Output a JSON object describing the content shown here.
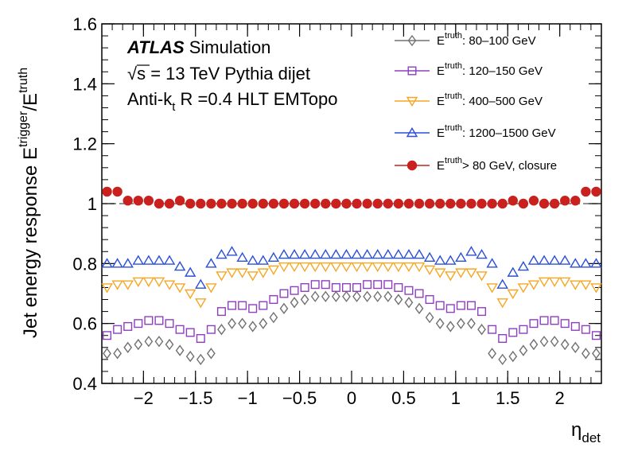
{
  "chart_data": {
    "type": "scatter",
    "title": "",
    "xlabel": "η",
    "xlabel_sub": "det",
    "ylabel": "Jet energy response  E",
    "ylabel_sup1": "trigger",
    "ylabel_mid": "/E",
    "ylabel_sup2": "truth",
    "xlim": [
      -2.4,
      2.4
    ],
    "ylim": [
      0.4,
      1.6
    ],
    "xticks": [
      -2,
      -1.5,
      -1,
      -0.5,
      0,
      0.5,
      1,
      1.5,
      2
    ],
    "xtick_labels": [
      "−2",
      "−1.5",
      "−1",
      "−0.5",
      "0",
      "0.5",
      "1",
      "1.5",
      "2"
    ],
    "yticks": [
      0.4,
      0.6,
      0.8,
      1,
      1.2,
      1.4,
      1.6
    ],
    "ytick_labels": [
      "0.4",
      "0.6",
      "0.8",
      "1",
      "1.2",
      "1.4",
      "1.6"
    ],
    "reference_line": 1.0,
    "annotation": {
      "atlas": "ATLAS",
      "simulation": "Simulation",
      "line2_sqrt": "√",
      "line2": "s = 13 TeV Pythia dijet",
      "line3_pre": "Anti-k",
      "line3_sub": "t",
      "line3_post": " R =0.4 HLT EMTopo"
    },
    "x": [
      -2.35,
      -2.25,
      -2.15,
      -2.05,
      -1.95,
      -1.85,
      -1.75,
      -1.65,
      -1.55,
      -1.45,
      -1.35,
      -1.25,
      -1.15,
      -1.05,
      -0.95,
      -0.85,
      -0.75,
      -0.65,
      -0.55,
      -0.45,
      -0.35,
      -0.25,
      -0.15,
      -0.05,
      0.05,
      0.15,
      0.25,
      0.35,
      0.45,
      0.55,
      0.65,
      0.75,
      0.85,
      0.95,
      1.05,
      1.15,
      1.25,
      1.35,
      1.45,
      1.55,
      1.65,
      1.75,
      1.85,
      1.95,
      2.05,
      2.15,
      2.25,
      2.35
    ],
    "series": [
      {
        "name": "80–100 GeV",
        "legend_prefix": "E",
        "legend_sup": "truth",
        "legend_text": ": 80–100 GeV",
        "marker": "diamond-open",
        "color": "#707070",
        "values": [
          0.5,
          0.5,
          0.52,
          0.53,
          0.54,
          0.54,
          0.53,
          0.51,
          0.49,
          0.48,
          0.5,
          0.58,
          0.6,
          0.6,
          0.59,
          0.6,
          0.62,
          0.65,
          0.67,
          0.68,
          0.69,
          0.69,
          0.69,
          0.69,
          0.69,
          0.69,
          0.69,
          0.69,
          0.68,
          0.67,
          0.65,
          0.62,
          0.6,
          0.59,
          0.6,
          0.6,
          0.58,
          0.5,
          0.48,
          0.49,
          0.51,
          0.53,
          0.54,
          0.54,
          0.53,
          0.52,
          0.5,
          0.5
        ]
      },
      {
        "name": "120–150 GeV",
        "legend_prefix": "E",
        "legend_sup": "truth",
        "legend_text": ": 120–150 GeV",
        "marker": "square-open",
        "color": "#8e3fbf",
        "values": [
          0.56,
          0.58,
          0.59,
          0.6,
          0.61,
          0.61,
          0.6,
          0.58,
          0.57,
          0.55,
          0.58,
          0.64,
          0.66,
          0.66,
          0.65,
          0.66,
          0.68,
          0.7,
          0.71,
          0.72,
          0.73,
          0.73,
          0.72,
          0.72,
          0.72,
          0.73,
          0.73,
          0.73,
          0.72,
          0.71,
          0.7,
          0.68,
          0.66,
          0.65,
          0.66,
          0.66,
          0.64,
          0.58,
          0.55,
          0.57,
          0.58,
          0.6,
          0.61,
          0.61,
          0.6,
          0.59,
          0.58,
          0.56
        ]
      },
      {
        "name": "400–500 GeV",
        "legend_prefix": "E",
        "legend_sup": "truth",
        "legend_text": ": 400–500 GeV",
        "marker": "triangle-down-open",
        "color": "#f5a623",
        "values": [
          0.72,
          0.73,
          0.73,
          0.74,
          0.74,
          0.74,
          0.73,
          0.72,
          0.7,
          0.67,
          0.72,
          0.76,
          0.77,
          0.77,
          0.76,
          0.77,
          0.78,
          0.79,
          0.79,
          0.79,
          0.79,
          0.79,
          0.79,
          0.79,
          0.79,
          0.79,
          0.79,
          0.79,
          0.79,
          0.79,
          0.79,
          0.78,
          0.77,
          0.76,
          0.77,
          0.77,
          0.76,
          0.72,
          0.67,
          0.7,
          0.72,
          0.73,
          0.74,
          0.74,
          0.74,
          0.73,
          0.73,
          0.72
        ]
      },
      {
        "name": "1200–1500 GeV",
        "legend_prefix": "E",
        "legend_sup": "truth",
        "legend_text": ": 1200–1500 GeV",
        "marker": "triangle-up-open",
        "color": "#2a4fd6",
        "values": [
          0.8,
          0.8,
          0.8,
          0.81,
          0.81,
          0.81,
          0.81,
          0.79,
          0.77,
          0.73,
          0.8,
          0.83,
          0.84,
          0.82,
          0.81,
          0.81,
          0.82,
          0.83,
          0.83,
          0.83,
          0.83,
          0.83,
          0.83,
          0.83,
          0.83,
          0.83,
          0.83,
          0.83,
          0.83,
          0.83,
          0.83,
          0.82,
          0.81,
          0.81,
          0.82,
          0.84,
          0.83,
          0.8,
          0.73,
          0.77,
          0.79,
          0.81,
          0.81,
          0.81,
          0.81,
          0.8,
          0.8,
          0.8
        ]
      },
      {
        "name": "> 80 GeV, closure",
        "legend_prefix": "E",
        "legend_sup": "truth",
        "legend_text": "> 80 GeV, closure",
        "marker": "circle-filled",
        "color": "#c8211e",
        "values": [
          1.04,
          1.04,
          1.01,
          1.01,
          1.01,
          1.0,
          1.0,
          1.01,
          1.0,
          1.0,
          1.0,
          1.0,
          1.0,
          1.0,
          1.0,
          1.0,
          1.0,
          1.0,
          1.0,
          1.0,
          1.0,
          1.0,
          1.0,
          1.0,
          1.0,
          1.0,
          1.0,
          1.0,
          1.0,
          1.0,
          1.0,
          1.0,
          1.0,
          1.0,
          1.0,
          1.0,
          1.0,
          1.0,
          1.0,
          1.01,
          1.0,
          1.01,
          1.0,
          1.0,
          1.01,
          1.01,
          1.04,
          1.04
        ]
      }
    ]
  }
}
